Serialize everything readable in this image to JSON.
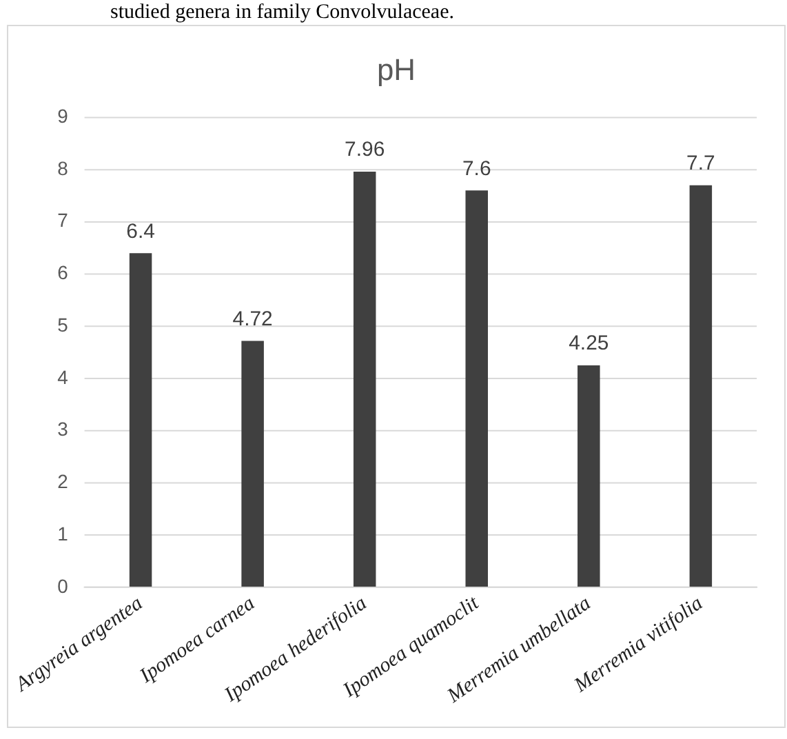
{
  "chart_data": {
    "type": "bar",
    "title": "pH",
    "annotations": [
      "studied genera in family Convolvulaceae."
    ],
    "categories": [
      "Argyreia argentea",
      "Ipomoea carnea",
      "Ipomoea hederifolia",
      "Ipomoea quamoclit",
      "Merremia umbellata",
      "Merremia vitifolia"
    ],
    "values": [
      6.4,
      4.72,
      7.96,
      7.6,
      4.25,
      7.7
    ],
    "color": "#404040",
    "ylim": [
      0,
      9
    ],
    "yticks": [
      0,
      1,
      2,
      3,
      4,
      5,
      6,
      7,
      8,
      9
    ],
    "grid": "y",
    "data_labels": true,
    "legend": false
  }
}
